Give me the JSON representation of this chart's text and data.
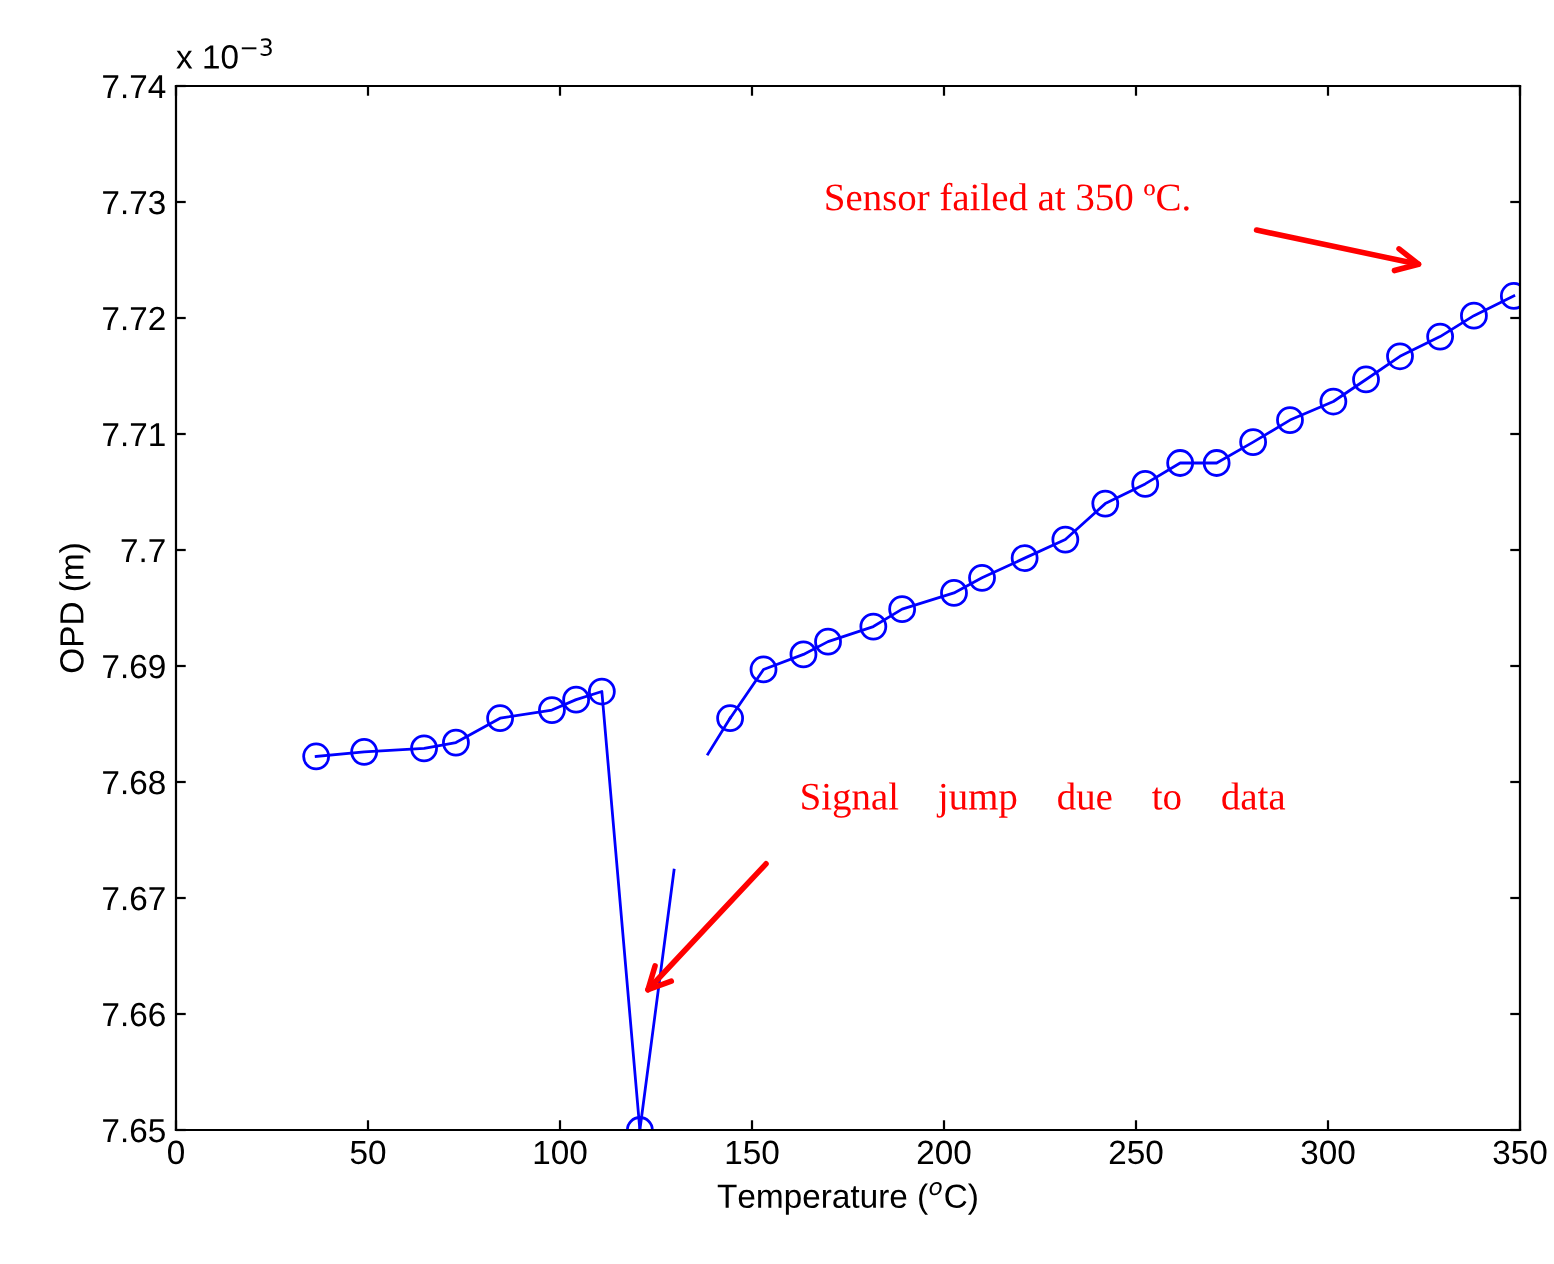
{
  "chart_data": {
    "type": "line",
    "xlabel": "Temperature ($^{o}$C)",
    "ylabel": "OPD (m)",
    "xlim": [
      0,
      350
    ],
    "xticks": [
      0,
      50,
      100,
      150,
      200,
      250,
      300,
      350
    ],
    "ylim": [
      7.65,
      7.74
    ],
    "yticks": [
      7.65,
      7.66,
      7.67,
      7.68,
      7.69,
      7.7,
      7.71,
      7.72,
      7.73,
      7.74
    ],
    "grid": false,
    "legend": false,
    "line_style": "solid",
    "series": [
      {
        "color": "#0000ff",
        "marker": "circle",
        "x": [
          36.5,
          49,
          64.6,
          72.9,
          84.4,
          97.9,
          104.2,
          110.9,
          120.8
        ],
        "values": [
          7.6822,
          7.6826,
          7.6829,
          7.6834,
          7.6855,
          7.6862,
          7.6871,
          7.6878,
          7.65
        ]
      },
      {
        "color": "#0000ff",
        "marker": "none",
        "x": [
          120.8,
          129.7
        ],
        "values": [
          7.65,
          7.6724
        ]
      },
      {
        "color": "#0000ff",
        "x": [
          138.5,
          144.3
        ],
        "values": [
          7.6824,
          7.6855
        ]
      },
      {
        "color": "#0000ff",
        "marker": "circle",
        "x": [
          144.3,
          153,
          163.4,
          169.8,
          181.6,
          189.1,
          202.6,
          209.9,
          221,
          231.6,
          242,
          252.4,
          261.5,
          271,
          280.5,
          290.1,
          301.4,
          309.9,
          318.75,
          329.2,
          338,
          348.4
        ],
        "values": [
          7.6855,
          7.6897,
          7.691,
          7.6921,
          7.6934,
          7.6949,
          7.6963,
          7.6976,
          7.6993,
          7.7009,
          7.704,
          7.7057,
          7.7075,
          7.7075,
          7.7093,
          7.7112,
          7.7128,
          7.7147,
          7.7167,
          7.7184,
          7.7202,
          7.7219
        ]
      }
    ],
    "annotations": [
      "x 10$^{−3}$",
      "Sensor failed at 350 ºC.",
      "Signal    jump    due    to    data"
    ]
  }
}
